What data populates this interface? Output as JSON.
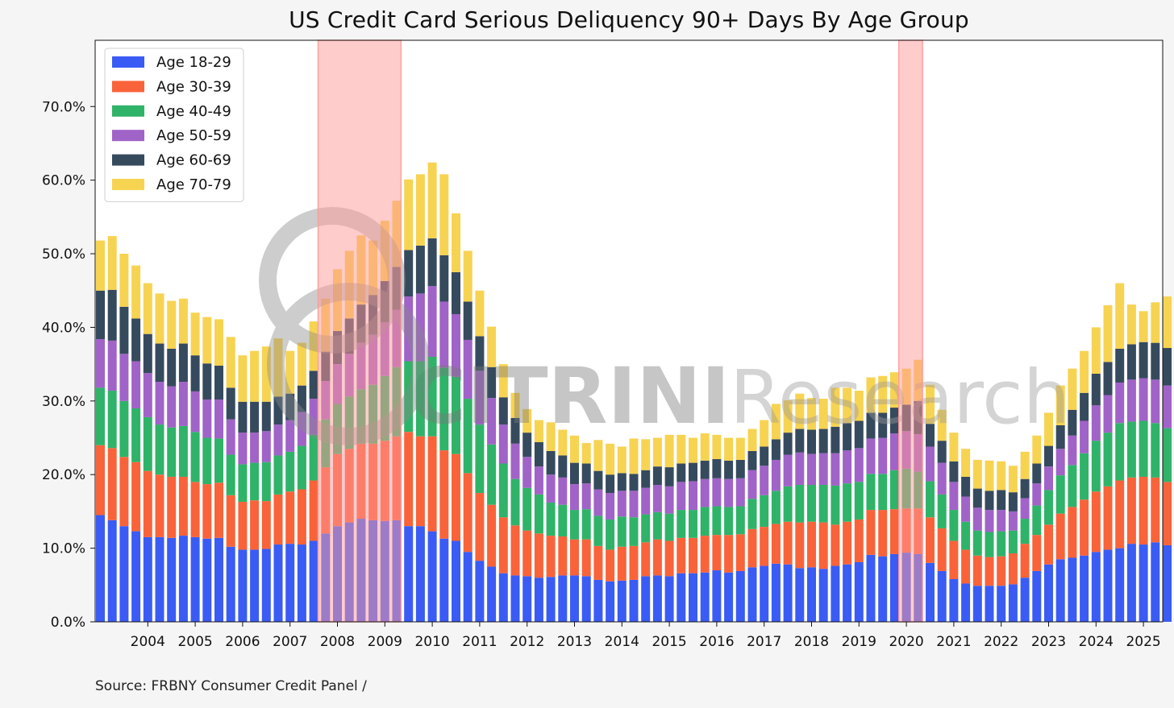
{
  "chart_data": {
    "type": "bar",
    "stacked": true,
    "title": "US Credit Card Serious Deliquency 90+ Days By Age Group",
    "xlabel": "",
    "ylabel": "",
    "ylim": [
      0,
      79
    ],
    "yticks": [
      "0.0%",
      "10.0%",
      "20.0%",
      "30.0%",
      "40.0%",
      "50.0%",
      "60.0%",
      "70.0%"
    ],
    "ytick_values": [
      0,
      10,
      20,
      30,
      40,
      50,
      60,
      70
    ],
    "xtick_labels": [
      "2004",
      "2005",
      "2006",
      "2007",
      "2008",
      "2009",
      "2010",
      "2011",
      "2012",
      "2013",
      "2014",
      "2015",
      "2016",
      "2017",
      "2018",
      "2019",
      "2020",
      "2021",
      "2022",
      "2023",
      "2024",
      "2025"
    ],
    "first_quarter": "2003Q1",
    "legend_position": "top-left",
    "grid": false,
    "recession_shading": [
      [
        "2007Q4",
        "2009Q2"
      ],
      [
        "2020Q1",
        "2020Q2"
      ]
    ],
    "recession_color": "#ff9a9a",
    "series": [
      {
        "name": "Age 18-29",
        "color": "#3a5cf4",
        "values": [
          14.5,
          13.8,
          13.0,
          12.3,
          11.5,
          11.5,
          11.4,
          11.7,
          11.5,
          11.3,
          11.4,
          10.2,
          9.8,
          9.8,
          9.9,
          10.5,
          10.6,
          10.5,
          11.0,
          12.0,
          13.0,
          13.5,
          14.0,
          13.8,
          13.7,
          13.8,
          13.0,
          13.0,
          12.3,
          11.3,
          11.0,
          9.5,
          8.3,
          7.5,
          6.6,
          6.3,
          6.2,
          6.0,
          6.1,
          6.3,
          6.3,
          6.2,
          5.7,
          5.5,
          5.6,
          5.7,
          6.2,
          6.3,
          6.2,
          6.6,
          6.6,
          6.7,
          7.0,
          6.7,
          6.9,
          7.4,
          7.6,
          7.9,
          7.8,
          7.3,
          7.4,
          7.2,
          7.6,
          7.8,
          8.1,
          9.1,
          8.9,
          9.2,
          9.4,
          9.2,
          8.0,
          6.9,
          5.8,
          5.2,
          4.9,
          4.9,
          4.9,
          5.1,
          6.0,
          6.9,
          7.8,
          8.5,
          8.7,
          9.0,
          9.5,
          9.8,
          10.0,
          10.6,
          10.5,
          10.8,
          10.4,
          10.0,
          10.1
        ]
      },
      {
        "name": "Age 30-39",
        "color": "#f9633a",
        "values": [
          9.5,
          9.8,
          9.4,
          9.4,
          9.0,
          8.5,
          8.3,
          8.0,
          7.5,
          7.4,
          7.5,
          7.0,
          6.5,
          6.7,
          6.5,
          6.8,
          7.1,
          7.5,
          8.2,
          9.0,
          9.8,
          10.0,
          10.2,
          10.4,
          10.9,
          11.4,
          12.8,
          12.2,
          12.9,
          12.0,
          11.8,
          10.7,
          9.2,
          8.4,
          7.6,
          6.8,
          6.2,
          6.0,
          5.6,
          5.3,
          4.9,
          5.0,
          4.6,
          4.3,
          4.6,
          4.6,
          4.6,
          4.9,
          4.8,
          4.8,
          4.8,
          5.0,
          4.8,
          5.1,
          5.0,
          5.2,
          5.3,
          5.4,
          5.8,
          6.2,
          6.2,
          6.3,
          5.6,
          5.8,
          5.8,
          6.1,
          6.3,
          6.1,
          6.0,
          6.2,
          6.2,
          5.8,
          5.2,
          4.6,
          4.1,
          3.9,
          4.0,
          4.2,
          4.6,
          4.9,
          5.4,
          6.2,
          6.9,
          7.6,
          8.2,
          8.6,
          9.2,
          9.0,
          9.2,
          8.8,
          8.6,
          8.7,
          8.7
        ]
      },
      {
        "name": "Age 40-49",
        "color": "#2fb369",
        "values": [
          7.8,
          7.8,
          7.6,
          7.3,
          7.3,
          6.8,
          6.7,
          6.9,
          6.8,
          6.3,
          6.0,
          5.5,
          5.1,
          5.1,
          5.3,
          5.3,
          5.4,
          5.9,
          6.2,
          6.5,
          6.8,
          7.1,
          7.4,
          8.0,
          8.8,
          9.4,
          9.6,
          10.2,
          10.8,
          11.2,
          10.5,
          10.1,
          9.3,
          8.2,
          7.3,
          6.3,
          5.8,
          5.3,
          4.5,
          4.3,
          4.0,
          4.1,
          4.1,
          4.1,
          4.1,
          3.9,
          3.8,
          3.7,
          3.7,
          3.8,
          3.8,
          3.9,
          3.9,
          3.8,
          3.8,
          4.1,
          4.3,
          4.5,
          4.8,
          5.1,
          5.0,
          5.1,
          5.3,
          5.2,
          5.1,
          4.9,
          4.9,
          5.3,
          5.4,
          5.0,
          4.9,
          4.6,
          4.2,
          3.8,
          3.4,
          3.4,
          3.4,
          3.1,
          3.4,
          4.0,
          4.7,
          5.2,
          5.7,
          6.3,
          6.9,
          7.3,
          7.8,
          7.6,
          7.6,
          7.4,
          7.3,
          7.5,
          7.6
        ]
      },
      {
        "name": "Age 50-59",
        "color": "#a063c7",
        "values": [
          6.6,
          6.8,
          6.4,
          6.4,
          6.0,
          5.8,
          5.6,
          6.0,
          5.5,
          5.2,
          5.3,
          4.8,
          4.3,
          4.1,
          4.2,
          4.2,
          4.3,
          4.6,
          4.9,
          5.2,
          5.4,
          5.8,
          6.3,
          6.8,
          7.3,
          7.8,
          8.8,
          9.2,
          9.6,
          9.0,
          8.5,
          8.0,
          7.3,
          6.3,
          5.3,
          4.8,
          4.2,
          3.8,
          3.8,
          3.7,
          3.5,
          3.5,
          3.6,
          3.6,
          3.5,
          3.6,
          3.6,
          3.7,
          3.7,
          3.8,
          3.9,
          3.8,
          3.8,
          3.8,
          3.8,
          3.9,
          4.0,
          4.2,
          4.3,
          4.4,
          4.2,
          4.3,
          4.4,
          4.5,
          4.6,
          4.8,
          4.9,
          5.0,
          5.1,
          5.1,
          4.7,
          4.3,
          3.8,
          3.4,
          3.1,
          3.0,
          2.9,
          2.6,
          2.8,
          3.0,
          3.2,
          3.6,
          4.0,
          4.4,
          4.8,
          5.1,
          5.5,
          5.7,
          5.8,
          5.9,
          5.8,
          5.8,
          5.8
        ]
      },
      {
        "name": "Age 60-69",
        "color": "#364a5e",
        "values": [
          6.6,
          6.9,
          6.4,
          5.8,
          5.3,
          5.2,
          5.1,
          5.2,
          4.9,
          4.9,
          4.6,
          4.3,
          4.2,
          4.2,
          4.0,
          3.8,
          3.6,
          3.6,
          3.8,
          4.0,
          4.5,
          4.8,
          5.2,
          5.4,
          5.6,
          5.8,
          6.3,
          6.5,
          6.5,
          6.3,
          5.7,
          5.2,
          4.7,
          4.2,
          3.7,
          3.5,
          3.3,
          3.3,
          3.2,
          3.0,
          2.9,
          2.7,
          2.5,
          2.5,
          2.4,
          2.3,
          2.4,
          2.5,
          2.6,
          2.5,
          2.5,
          2.5,
          2.6,
          2.5,
          2.5,
          2.6,
          2.6,
          2.8,
          3.0,
          3.2,
          3.3,
          3.3,
          3.6,
          3.7,
          3.7,
          3.5,
          3.4,
          3.5,
          3.6,
          4.5,
          3.1,
          3.0,
          2.8,
          2.7,
          2.6,
          2.6,
          2.7,
          2.6,
          2.6,
          2.7,
          2.8,
          3.2,
          3.5,
          3.8,
          4.3,
          4.5,
          4.6,
          4.8,
          4.9,
          5.0,
          5.1,
          4.9,
          5.1
        ]
      },
      {
        "name": "Age 70-79",
        "color": "#f7d352",
        "values": [
          6.8,
          7.3,
          7.2,
          7.2,
          6.9,
          6.8,
          6.5,
          6.1,
          5.8,
          6.3,
          6.3,
          6.9,
          6.3,
          6.9,
          7.5,
          7.9,
          5.8,
          5.8,
          6.7,
          7.2,
          8.4,
          9.2,
          9.4,
          7.4,
          8.2,
          9.0,
          9.6,
          9.7,
          10.3,
          11.0,
          8.0,
          6.9,
          6.2,
          5.5,
          4.5,
          3.4,
          3.2,
          3.0,
          3.9,
          3.5,
          3.7,
          2.8,
          4.2,
          4.2,
          3.6,
          4.8,
          4.2,
          3.9,
          4.4,
          3.9,
          3.4,
          3.7,
          3.3,
          3.1,
          3.0,
          3.0,
          3.6,
          4.8,
          4.4,
          4.8,
          4.3,
          4.1,
          5.3,
          4.8,
          4.1,
          4.8,
          5.0,
          4.8,
          4.9,
          5.6,
          5.3,
          4.2,
          3.9,
          3.8,
          3.9,
          4.1,
          3.9,
          3.6,
          3.7,
          3.8,
          4.5,
          5.4,
          5.6,
          5.7,
          6.3,
          7.7,
          8.9,
          5.4,
          4.2,
          5.5,
          7.0,
          6.3,
          6.5
        ]
      }
    ]
  },
  "source": "Source: FRBNY Consumer Credit Panel /",
  "watermark": {
    "bold": "CITRINI",
    "light": "Research"
  }
}
